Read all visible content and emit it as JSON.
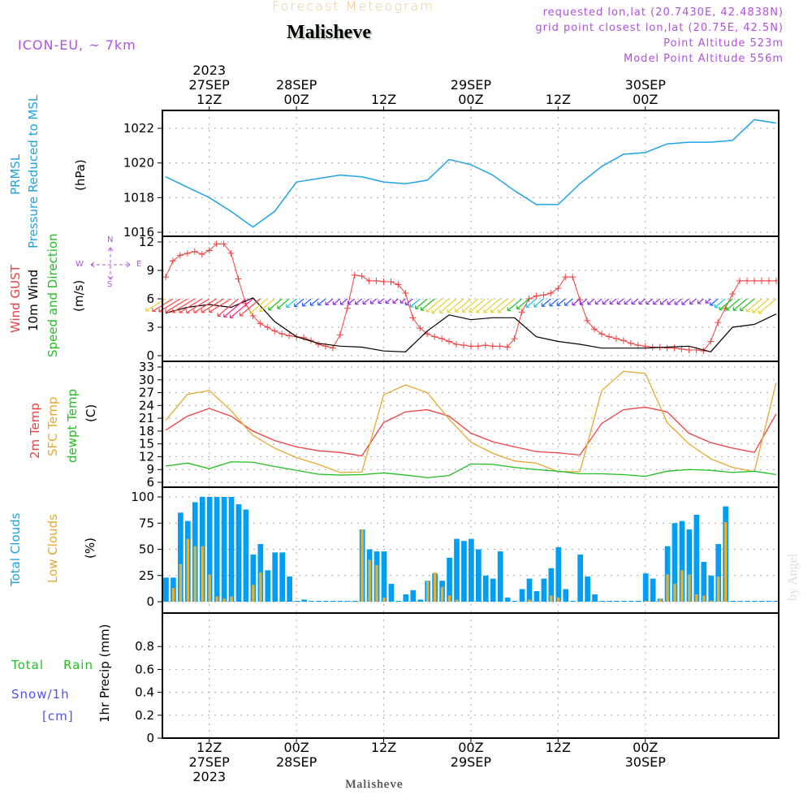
{
  "header": {
    "title": "Forecast Meteogram",
    "title_color": "#f2c98a",
    "place": "Malisheve",
    "model": "ICON-EU, ~ 7km",
    "requested": "requested lon,lat (20.7430E, 42.4838N)",
    "grid_point": "grid point closest lon,lat (20.75E, 42.5N)",
    "point_altitude": "Point Altitude 523m",
    "model_altitude": "Model Point Altitude 556m",
    "info_color": "#b050e0"
  },
  "footer": {
    "place": "Malisheve",
    "watermark": "by Angel"
  },
  "time_axis": {
    "start": "2023-09-27T06Z",
    "end": "2023-09-30T18Z",
    "step_hours": 1,
    "top_labels": [
      {
        "hour": 6,
        "lines": [
          "2023",
          "27SEP",
          "12Z"
        ]
      },
      {
        "hour": 18,
        "lines": [
          "28SEP",
          "00Z"
        ]
      },
      {
        "hour": 30,
        "lines": [
          "12Z"
        ]
      },
      {
        "hour": 42,
        "lines": [
          "29SEP",
          "00Z"
        ]
      },
      {
        "hour": 54,
        "lines": [
          "12Z"
        ]
      },
      {
        "hour": 66,
        "lines": [
          "30SEP",
          "00Z"
        ]
      }
    ],
    "bottom_labels": [
      {
        "hour": 6,
        "lines": [
          "12Z",
          "27SEP",
          "2023"
        ]
      },
      {
        "hour": 18,
        "lines": [
          "00Z",
          "28SEP"
        ]
      },
      {
        "hour": 30,
        "lines": [
          "12Z"
        ]
      },
      {
        "hour": 42,
        "lines": [
          "00Z",
          "29SEP"
        ]
      },
      {
        "hour": 54,
        "lines": [
          "12Z"
        ]
      },
      {
        "hour": 66,
        "lines": [
          "00Z",
          "30SEP"
        ]
      }
    ]
  },
  "labels": {
    "pressure": [
      {
        "text": "PRMSL",
        "color": "#1fa3e8"
      },
      {
        "text": "Pressure Reduced to MSL",
        "color": "#1fa3e8"
      },
      {
        "text": "(hPa)",
        "color": "#000000"
      }
    ],
    "wind": [
      {
        "text": "Wind GUST",
        "color": "#f04040",
        "parts": [
          {
            "t": "Wind ",
            "c": "#f04040"
          },
          {
            "t": "GUST",
            "c": "#f04040"
          }
        ]
      },
      {
        "text": "10m Wind",
        "color": "#000000"
      },
      {
        "text": "Speed and Direction",
        "color": "#22c022"
      },
      {
        "text": "(m/s)",
        "color": "#000000"
      }
    ],
    "compass": {
      "n": "N",
      "s": "S",
      "w": "W",
      "e": "E",
      "color": "#b050e0"
    },
    "temp": [
      {
        "text": "2m Temp",
        "color": "#f04040"
      },
      {
        "text": "SFC Temp",
        "color": "#e8a830"
      },
      {
        "text": "dewpt Temp",
        "color": "#22c022"
      },
      {
        "text": "(C)",
        "color": "#000000"
      }
    ],
    "clouds": [
      {
        "text": "Total Clouds",
        "color": "#1fa3e8"
      },
      {
        "text": "Low Clouds",
        "color": "#e8a830"
      },
      {
        "text": "(%)",
        "color": "#000000"
      }
    ],
    "precip": {
      "total_rain_a": "Total",
      "total_rain_b": "Rain",
      "total_rain_color": "#22c022",
      "snow": "Snow/1h",
      "snow_unit": "[cm]",
      "snow_color": "#5050f0",
      "axis": "1hr Precip (mm)"
    }
  },
  "chart_data": [
    {
      "type": "line",
      "title": "PRMSL Pressure Reduced to MSL",
      "ylabel": "(hPa)",
      "ylim": [
        1016,
        1023
      ],
      "yticks": [
        1016,
        1018,
        1020,
        1022
      ],
      "grid": true,
      "x_hours_from_start": [
        0,
        3,
        6,
        9,
        12,
        15,
        18,
        21,
        24,
        27,
        30,
        33,
        36,
        39,
        42,
        45,
        48,
        51,
        54,
        57,
        60,
        63,
        66,
        69,
        72,
        75,
        78,
        81,
        84
      ],
      "series": [
        {
          "name": "PRMSL",
          "color": "#1fa3e8",
          "values": [
            1019.2,
            1018.6,
            1018.0,
            1017.2,
            1016.3,
            1017.2,
            1018.9,
            1019.1,
            1019.3,
            1019.2,
            1018.9,
            1018.8,
            1019.0,
            1020.2,
            1019.9,
            1019.3,
            1018.4,
            1017.6,
            1017.6,
            1018.8,
            1019.8,
            1020.5,
            1020.6,
            1021.1,
            1021.2,
            1021.2,
            1021.3,
            1022.5,
            1022.3
          ]
        }
      ]
    },
    {
      "type": "line",
      "title": "Wind GUST / 10m Wind Speed and Direction",
      "ylabel": "(m/s)",
      "ylim": [
        0,
        12
      ],
      "yticks": [
        0,
        3,
        6,
        9,
        12
      ],
      "grid": true,
      "series": [
        {
          "name": "Wind GUST",
          "color": "#f04040",
          "marker": "+",
          "x_hours": [
            0,
            1,
            2,
            3,
            4,
            5,
            6,
            7,
            8,
            9,
            10,
            11,
            12,
            13,
            14,
            15,
            16,
            17,
            18,
            19,
            20,
            21,
            22,
            23,
            24,
            25,
            26,
            27,
            28,
            29,
            30,
            31,
            32,
            33,
            34,
            35,
            36,
            37,
            38,
            39,
            40,
            41,
            42,
            43,
            44,
            45,
            46,
            47,
            48,
            49,
            50,
            51,
            52,
            53,
            54,
            55,
            56,
            57,
            58,
            59,
            60,
            61,
            62,
            63,
            64,
            65,
            66,
            67,
            68,
            69,
            70,
            71,
            72,
            73,
            74,
            75,
            76,
            77,
            78,
            79,
            80,
            81,
            82,
            83,
            84
          ],
          "values": [
            8.3,
            10.0,
            10.6,
            10.8,
            11.0,
            10.7,
            11.1,
            11.8,
            11.8,
            10.8,
            8.1,
            5.5,
            4.2,
            3.4,
            3.0,
            2.6,
            2.3,
            2.1,
            2.0,
            1.9,
            1.6,
            1.2,
            1.0,
            0.8,
            2.2,
            5.0,
            8.5,
            8.4,
            7.9,
            7.9,
            7.8,
            7.8,
            7.5,
            6.6,
            4.0,
            2.9,
            2.3,
            2.0,
            1.8,
            1.5,
            1.2,
            1.1,
            1.0,
            1.0,
            1.1,
            1.0,
            1.0,
            0.9,
            1.8,
            4.6,
            6.0,
            6.3,
            6.4,
            6.6,
            7.1,
            8.3,
            8.3,
            5.9,
            3.7,
            2.8,
            2.3,
            2.0,
            1.8,
            1.6,
            1.3,
            1.1,
            1.0,
            0.9,
            0.9,
            0.8,
            0.8,
            0.7,
            0.6,
            0.6,
            0.5,
            1.5,
            3.5,
            5.0,
            6.5,
            7.9,
            7.9,
            7.9,
            7.9,
            7.9,
            7.9
          ]
        },
        {
          "name": "10m Wind",
          "color": "#000000",
          "x_hours": [
            0,
            3,
            6,
            9,
            12,
            15,
            18,
            21,
            24,
            27,
            30,
            33,
            36,
            39,
            42,
            45,
            48,
            51,
            54,
            57,
            60,
            63,
            66,
            69,
            72,
            75,
            78,
            81,
            84
          ],
          "values": [
            4.5,
            5.1,
            5.4,
            5.1,
            6.1,
            3.6,
            2.0,
            1.3,
            1.0,
            0.9,
            0.5,
            0.4,
            2.6,
            4.3,
            3.8,
            4.0,
            4.0,
            2.0,
            1.5,
            1.2,
            0.8,
            0.8,
            0.8,
            0.9,
            1.0,
            0.4,
            3.0,
            3.3,
            4.4
          ]
        }
      ],
      "wind_barbs_note": "Direction arrows plotted along 6 m/s line, coloured by speed"
    },
    {
      "type": "line",
      "title": "Temperatures",
      "ylabel": "(C)",
      "ylim": [
        6,
        33
      ],
      "yticks": [
        6,
        9,
        12,
        15,
        18,
        21,
        24,
        27,
        30,
        33
      ],
      "grid": true,
      "x_hours_from_start": [
        0,
        3,
        6,
        9,
        12,
        15,
        18,
        21,
        24,
        27,
        30,
        33,
        36,
        39,
        42,
        45,
        48,
        51,
        54,
        57,
        60,
        63,
        66,
        69,
        72,
        75,
        78,
        81,
        84
      ],
      "series": [
        {
          "name": "2m Temp",
          "color": "#f04040",
          "values": [
            18.2,
            21.5,
            23.3,
            21.5,
            18.0,
            15.8,
            14.3,
            13.4,
            13.0,
            12.2,
            20.0,
            22.5,
            23.0,
            21.5,
            17.5,
            15.5,
            14.3,
            13.2,
            12.9,
            12.4,
            19.8,
            23.0,
            23.6,
            22.5,
            17.5,
            15.3,
            14.0,
            13.0,
            22.0
          ]
        },
        {
          "name": "SFC Temp",
          "color": "#e8a830",
          "values": [
            20.5,
            26.6,
            27.5,
            22.8,
            17.0,
            14.0,
            11.8,
            10.2,
            8.3,
            8.4,
            26.5,
            28.8,
            27.0,
            20.8,
            15.4,
            12.8,
            11.0,
            10.5,
            8.5,
            8.5,
            27.5,
            32.0,
            31.5,
            20.0,
            15.0,
            11.5,
            9.5,
            8.5,
            29.3
          ]
        },
        {
          "name": "dewpt Temp",
          "color": "#22c022",
          "values": [
            9.8,
            10.5,
            9.2,
            10.8,
            10.7,
            9.7,
            8.8,
            7.9,
            7.7,
            7.8,
            8.2,
            7.7,
            7.1,
            7.6,
            10.3,
            10.2,
            9.5,
            9.0,
            8.6,
            8.0,
            8.0,
            7.8,
            7.4,
            8.6,
            9.0,
            8.8,
            8.3,
            8.6,
            7.8
          ]
        }
      ]
    },
    {
      "type": "bar",
      "title": "Clouds",
      "ylabel": "(%)",
      "ylim": [
        0,
        100
      ],
      "yticks": [
        0,
        25,
        50,
        75,
        100
      ],
      "grid": true,
      "x_hours_from_start": [
        0,
        1,
        2,
        3,
        4,
        5,
        6,
        7,
        8,
        9,
        10,
        11,
        12,
        13,
        14,
        15,
        16,
        17,
        18,
        19,
        20,
        21,
        22,
        23,
        24,
        25,
        26,
        27,
        28,
        29,
        30,
        31,
        32,
        33,
        34,
        35,
        36,
        37,
        38,
        39,
        40,
        41,
        42,
        43,
        44,
        45,
        46,
        47,
        48,
        49,
        50,
        51,
        52,
        53,
        54,
        55,
        56,
        57,
        58,
        59,
        60,
        61,
        62,
        63,
        64,
        65,
        66,
        67,
        68,
        69,
        70,
        71,
        72,
        73,
        74,
        75,
        76,
        77,
        78,
        79,
        80,
        81,
        82,
        83,
        84
      ],
      "series": [
        {
          "name": "Total Clouds",
          "color": "#009ef5",
          "values": [
            23,
            23,
            85,
            77,
            95,
            100,
            100,
            100,
            100,
            100,
            93,
            88,
            45,
            55,
            30,
            47,
            47,
            24,
            0,
            2,
            0,
            0,
            0,
            0,
            0,
            0,
            0,
            69,
            50,
            48,
            48,
            17,
            0,
            7,
            11,
            2,
            20,
            27,
            20,
            42,
            60,
            58,
            60,
            50,
            25,
            22,
            48,
            4,
            0,
            12,
            22,
            10,
            22,
            32,
            52,
            12,
            0,
            45,
            24,
            7,
            0,
            0,
            0,
            0,
            0,
            0,
            27,
            22,
            3,
            53,
            75,
            77,
            69,
            83,
            38,
            25,
            55,
            91,
            0,
            0,
            0,
            0,
            0,
            0,
            0
          ]
        },
        {
          "name": "Low Clouds",
          "color": "#e8b030",
          "values": [
            0,
            13,
            36,
            60,
            53,
            53,
            26,
            5,
            3,
            5,
            0,
            0,
            16,
            28,
            0,
            0,
            0,
            0,
            0,
            0,
            0,
            0,
            0,
            0,
            0,
            0,
            0,
            69,
            40,
            35,
            4,
            0,
            0,
            0,
            0,
            0,
            20,
            28,
            14,
            6,
            2,
            0,
            0,
            0,
            0,
            0,
            0,
            0,
            0,
            0,
            2,
            0,
            0,
            6,
            4,
            0,
            0,
            0,
            0,
            0,
            0,
            0,
            0,
            0,
            0,
            0,
            1,
            0,
            3,
            26,
            17,
            30,
            26,
            7,
            6,
            1,
            24,
            76,
            0,
            0,
            0,
            0,
            0,
            0,
            0
          ]
        }
      ]
    },
    {
      "type": "bar",
      "title": "1hr Precip",
      "ylabel": "1hr Precip (mm)",
      "ylim": [
        0,
        1.0
      ],
      "yticks": [
        0,
        0.2,
        0.4,
        0.6,
        0.8
      ],
      "ytick_labels": [
        "0",
        "0.2",
        "0.4",
        "0.6",
        "0.8"
      ],
      "grid": true,
      "series": [
        {
          "name": "Total Rain",
          "color": "#22c022",
          "values": []
        },
        {
          "name": "Snow/1h [cm]",
          "color": "#5050f0",
          "values": []
        }
      ]
    }
  ]
}
